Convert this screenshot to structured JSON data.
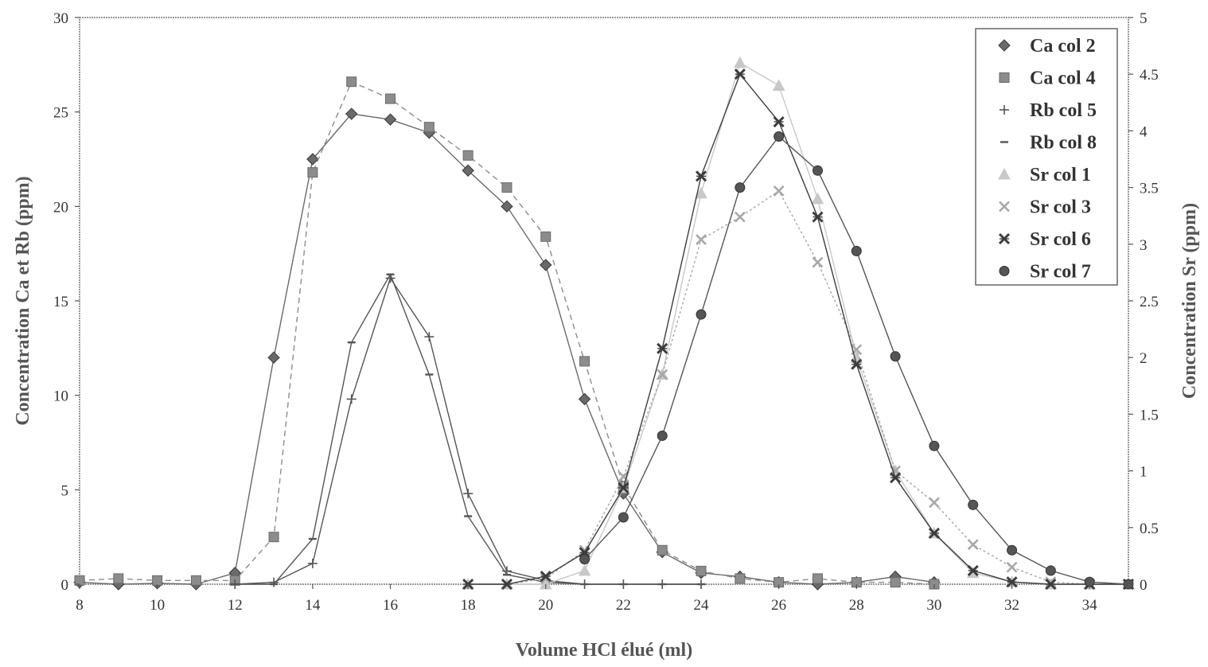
{
  "chart_data": {
    "type": "line",
    "xlabel": "Volume HCl élué (ml)",
    "ylabel_left": "Concentration Ca et Rb (ppm)",
    "ylabel_right": "Concentration Sr (ppm)",
    "xlim": [
      8,
      35
    ],
    "ylim_left": [
      0,
      30
    ],
    "ylim_right": [
      0,
      5
    ],
    "x_ticks": [
      "8",
      "10",
      "12",
      "14",
      "16",
      "18",
      "20",
      "22",
      "24",
      "26",
      "28",
      "30",
      "32",
      "34"
    ],
    "y_left_ticks": [
      "0",
      "5",
      "10",
      "15",
      "20",
      "25",
      "30"
    ],
    "y_right_ticks": [
      "0",
      "0.5",
      "1",
      "1.5",
      "2",
      "2.5",
      "3",
      "3.5",
      "4",
      "4.5",
      "5"
    ],
    "grid": false,
    "legend_position": "top-right",
    "series": [
      {
        "name": "Ca col 2",
        "axis": "left",
        "marker": "diamond",
        "color": "#6a6a6a",
        "dash": "",
        "x": [
          8,
          9,
          10,
          11,
          12,
          13,
          14,
          15,
          16,
          17,
          18,
          19,
          20,
          21,
          22,
          23,
          24,
          25,
          26,
          27,
          28,
          29,
          30
        ],
        "y": [
          0.1,
          0,
          0.05,
          0,
          0.6,
          12,
          22.5,
          24.9,
          24.6,
          23.9,
          21.9,
          20.0,
          16.9,
          9.8,
          4.8,
          1.7,
          0.6,
          0.4,
          0.1,
          0,
          0.1,
          0.4,
          0.1
        ]
      },
      {
        "name": "Ca col 4",
        "axis": "left",
        "marker": "square",
        "color": "#8c8c8c",
        "dash": "7,5",
        "x": [
          8,
          9,
          10,
          11,
          12,
          13,
          14,
          15,
          16,
          17,
          18,
          19,
          20,
          21,
          22,
          23,
          24,
          25,
          26,
          27,
          28,
          29,
          30
        ],
        "y": [
          0.2,
          0.3,
          0.2,
          0.2,
          0.2,
          2.5,
          21.8,
          26.6,
          25.7,
          24.2,
          22.7,
          21.0,
          18.4,
          11.8,
          5.2,
          1.8,
          0.7,
          0.3,
          0.1,
          0.3,
          0.1,
          0.1,
          0
        ]
      },
      {
        "name": "Rb col 5",
        "axis": "left",
        "marker": "cross",
        "color": "#555555",
        "dash": "",
        "x": [
          12,
          13,
          14,
          15,
          16,
          17,
          18,
          19,
          20,
          21,
          22,
          23,
          24
        ],
        "y": [
          0,
          0.1,
          1.1,
          9.8,
          16.2,
          13.1,
          4.8,
          0.7,
          0.2,
          0,
          0,
          0,
          0
        ]
      },
      {
        "name": "Rb col 8",
        "axis": "left",
        "marker": "dash",
        "color": "#555555",
        "dash": "",
        "x": [
          12,
          13,
          14,
          15,
          16,
          17,
          18,
          19,
          20,
          21,
          22,
          23,
          24
        ],
        "y": [
          0,
          0,
          2.4,
          12.8,
          16.4,
          11.1,
          3.6,
          0.5,
          0.1,
          0,
          0,
          0,
          0
        ]
      },
      {
        "name": "Sr col 1",
        "axis": "right",
        "marker": "triangle",
        "color": "#c8c8c8",
        "dash": "",
        "x": [
          18,
          19,
          20,
          21,
          22,
          23,
          24,
          25,
          26,
          27,
          28,
          29,
          30,
          31,
          32,
          33,
          34,
          35
        ],
        "y": [
          0,
          0,
          0,
          0.12,
          0.85,
          1.85,
          3.45,
          4.6,
          4.4,
          3.4,
          2.0,
          1.0,
          0.45,
          0.1,
          0.02,
          0,
          0,
          0
        ]
      },
      {
        "name": "Sr col 3",
        "axis": "right",
        "marker": "x",
        "color": "#a8a8a8",
        "dash": "3,3",
        "x": [
          18,
          19,
          20,
          21,
          22,
          23,
          24,
          25,
          26,
          27,
          28,
          29,
          30,
          31,
          32,
          33,
          34,
          35
        ],
        "y": [
          0,
          0,
          0.05,
          0.3,
          0.95,
          1.85,
          3.04,
          3.24,
          3.47,
          2.84,
          2.07,
          1.0,
          0.72,
          0.35,
          0.15,
          0.02,
          0,
          0
        ]
      },
      {
        "name": "Sr col 6",
        "axis": "right",
        "marker": "bigx",
        "color": "#3d3d3d",
        "dash": "",
        "x": [
          18,
          19,
          20,
          21,
          22,
          23,
          24,
          25,
          26,
          27,
          28,
          29,
          30,
          31,
          32,
          33,
          34,
          35
        ],
        "y": [
          0,
          0,
          0.07,
          0.28,
          0.85,
          2.08,
          3.6,
          4.5,
          4.08,
          3.24,
          1.94,
          0.94,
          0.45,
          0.12,
          0.02,
          0,
          0,
          0
        ]
      },
      {
        "name": "Sr col 7",
        "axis": "right",
        "marker": "circle",
        "color": "#555555",
        "dash": "",
        "x": [
          21,
          22,
          23,
          24,
          25,
          26,
          27,
          28,
          29,
          30,
          31,
          32,
          33,
          34,
          35
        ],
        "y": [
          0.22,
          0.59,
          1.31,
          2.38,
          3.5,
          3.95,
          3.65,
          2.94,
          2.01,
          1.22,
          0.7,
          0.3,
          0.12,
          0.02,
          0
        ]
      }
    ]
  }
}
